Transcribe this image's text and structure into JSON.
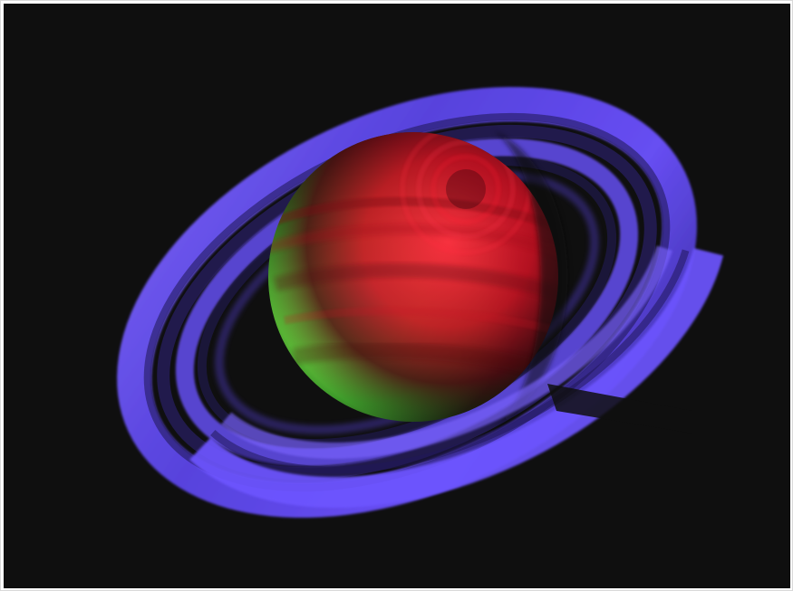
{
  "image": {
    "subject": "saturn-with-rings",
    "background_color": "#0f0f0f",
    "colors": {
      "ring_violet": "#6b4cff",
      "ring_dark": "#2a1f66",
      "planet_green": "#b9ff62",
      "planet_red": "#d1122a",
      "planet_shadow": "#1a0508"
    }
  }
}
